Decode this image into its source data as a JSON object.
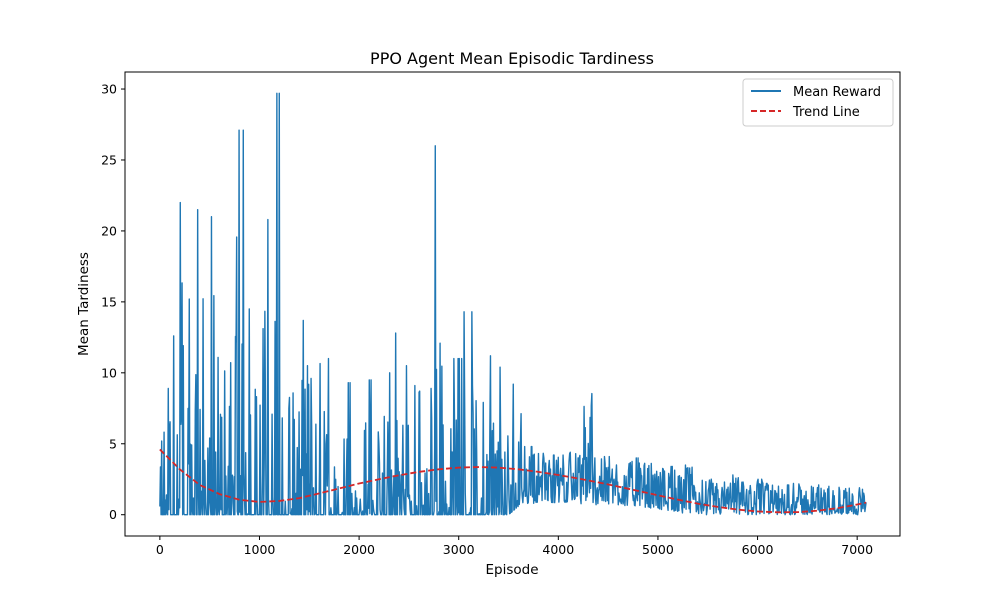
{
  "chart_data": {
    "type": "line",
    "title": "PPO Agent Mean Episodic Tardiness",
    "xlabel": "Episode",
    "ylabel": "Mean Tardiness",
    "xlim": [
      -350,
      7430
    ],
    "ylim": [
      -1.5,
      31.2
    ],
    "xticks": [
      0,
      1000,
      2000,
      3000,
      4000,
      5000,
      6000,
      7000
    ],
    "yticks": [
      0,
      5,
      10,
      15,
      20,
      25,
      30
    ],
    "legend": {
      "position": "upper right",
      "entries": [
        {
          "label": "Mean Reward",
          "style": "solid",
          "color": "#1f77b4"
        },
        {
          "label": "Trend Line",
          "style": "dashed",
          "color": "#d62728"
        }
      ]
    },
    "series": [
      {
        "name": "Mean Reward",
        "color": "#1f77b4",
        "style": "solid",
        "x": [
          0,
          100,
          200,
          300,
          400,
          500,
          600,
          700,
          800,
          900,
          1000,
          1100,
          1200,
          1300,
          1400,
          1500,
          1600,
          1700,
          1800,
          1900,
          2000,
          2100,
          2200,
          2300,
          2400,
          2500,
          2600,
          2700,
          2800,
          2900,
          3000,
          3100,
          3200,
          3300,
          3400,
          3500,
          3600,
          3700,
          3800,
          3900,
          4000,
          4100,
          4200,
          4300,
          4400,
          4500,
          4600,
          4700,
          4800,
          4900,
          5000,
          5100,
          5200,
          5300,
          5400,
          5500,
          5600,
          5700,
          5800,
          5900,
          6000,
          6100,
          6200,
          6300,
          6400,
          6500,
          6600,
          6700,
          6800,
          6900,
          7000,
          7090
        ],
        "envelope_max": [
          10.5,
          12.6,
          22,
          15.2,
          21.5,
          21,
          16.5,
          16.8,
          27.1,
          14.5,
          19,
          20.8,
          29.7,
          16.2,
          19.7,
          15.5,
          15.3,
          11,
          10.4,
          9.3,
          11.5,
          9.5,
          8.3,
          10,
          12.8,
          10.5,
          13.2,
          14.4,
          26,
          12.5,
          11,
          14.3,
          11.5,
          11.2,
          10.4,
          9.2,
          7.6,
          4.8,
          4.6,
          4,
          4.2,
          4.4,
          4.3,
          9.6,
          4,
          4.1,
          4.2,
          3.8,
          4,
          3.7,
          3.5,
          3.4,
          3.3,
          3.5,
          2.8,
          2.5,
          2.3,
          2.3,
          2.8,
          2.3,
          2.5,
          2.2,
          2.1,
          2.1,
          2.2,
          2.0,
          2.1,
          2.0,
          2.0,
          2.0,
          1.9,
          1.9
        ],
        "envelope_min": [
          0,
          0,
          0,
          0,
          0,
          0,
          0,
          0,
          0,
          0,
          0,
          0,
          0,
          0,
          0,
          0,
          0,
          0,
          0,
          0,
          0,
          0,
          0,
          0,
          0,
          0,
          0,
          0,
          0,
          0,
          0,
          0,
          0,
          0,
          0,
          0,
          0.6,
          0.7,
          0.9,
          0.9,
          0.8,
          0.9,
          0.8,
          0.7,
          0.7,
          0.7,
          0.7,
          0.6,
          0.6,
          0.5,
          0.4,
          0.3,
          0.2,
          0,
          0,
          0,
          0,
          0,
          0,
          0,
          0,
          0,
          0,
          0,
          0,
          0,
          0,
          0,
          0,
          0,
          0,
          0
        ]
      },
      {
        "name": "Trend Line",
        "color": "#d62728",
        "style": "dashed",
        "x": [
          0,
          200,
          400,
          600,
          800,
          1000,
          1200,
          1400,
          1600,
          1800,
          2000,
          2200,
          2400,
          2600,
          2800,
          3000,
          3200,
          3400,
          3600,
          3800,
          4000,
          4200,
          4400,
          4600,
          4800,
          5000,
          5200,
          5400,
          5600,
          5800,
          6000,
          6200,
          6400,
          6600,
          6800,
          7000,
          7090
        ],
        "y": [
          4.6,
          3.2,
          2.1,
          1.45,
          1.05,
          0.9,
          0.97,
          1.17,
          1.5,
          1.85,
          2.2,
          2.5,
          2.78,
          3.02,
          3.2,
          3.32,
          3.36,
          3.32,
          3.2,
          3.02,
          2.8,
          2.55,
          2.28,
          1.98,
          1.68,
          1.37,
          1.06,
          0.78,
          0.55,
          0.36,
          0.23,
          0.17,
          0.18,
          0.28,
          0.46,
          0.72,
          0.85
        ]
      }
    ]
  }
}
